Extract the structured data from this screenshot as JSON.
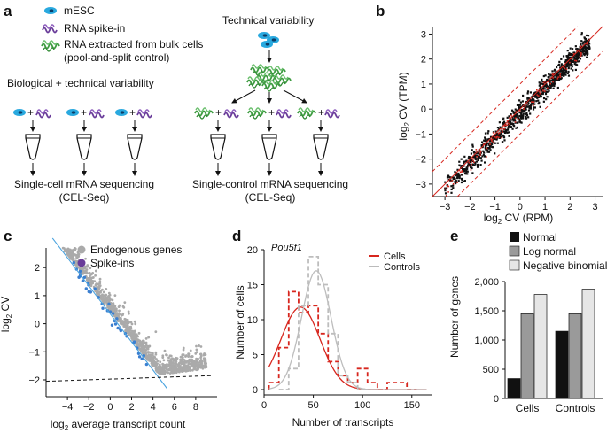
{
  "panels": {
    "a": {
      "label": "a",
      "legend": {
        "mesc": "mESC",
        "spike": "RNA spike-in",
        "bulk_line1": "RNA extracted from bulk cells",
        "bulk_line2": "(pool-and-split control)"
      },
      "bio_title": "Biological + technical variability",
      "tech_title": "Technical variability",
      "single_cell_line1": "Single-cell mRNA sequencing",
      "single_cell_line2": "(CEL-Seq)",
      "single_control_line1": "Single-control mRNA sequencing",
      "single_control_line2": "(CEL-Seq)",
      "plus": "+"
    },
    "b": {
      "label": "b",
      "xlabel_prefix": "log",
      "xlabel_sub": "2",
      "xlabel_suffix": " CV (RPM)",
      "ylabel_prefix": "log",
      "ylabel_sub": "2",
      "ylabel_suffix": " CV (TPM)"
    },
    "c": {
      "label": "c",
      "legend_endogenous": "Endogenous genes",
      "legend_spike": "Spike-ins",
      "xlabel_prefix": "log",
      "xlabel_sub": "2",
      "xlabel_suffix": " average transcript count",
      "ylabel_prefix": "log",
      "ylabel_sub": "2",
      "ylabel_suffix": " CV"
    },
    "d": {
      "label": "d",
      "gene": "Pou5f1",
      "legend_cells": "Cells",
      "legend_controls": "Controls",
      "xlabel": "Number of transcripts",
      "ylabel": "Number of cells"
    },
    "e": {
      "label": "e",
      "legend_normal": "Normal",
      "legend_lognormal": "Log normal",
      "legend_negbin": "Negative binomial",
      "ylabel": "Number of genes"
    }
  },
  "colors": {
    "mesc": "#29a9df",
    "spike": "#6a3d9a",
    "bulk": "#4caf50",
    "red": "#d7261e",
    "blue": "#3b7fd0",
    "grey": "#aaaaaa",
    "lightgrey": "#c8c8c8"
  },
  "chart_data": [
    {
      "id": "b",
      "type": "scatter",
      "title": "",
      "xlabel": "log2 CV (RPM)",
      "ylabel": "log2 CV (TPM)",
      "xlim": [
        -3.5,
        3.3
      ],
      "ylim": [
        -3.5,
        3.3
      ],
      "xticks": [
        -3,
        -2,
        -1,
        0,
        1,
        2,
        3
      ],
      "yticks": [
        -3,
        -2,
        -1,
        0,
        1,
        2,
        3
      ],
      "identity_line": {
        "slope": 1,
        "intercept": 0
      },
      "bounds_lines": [
        {
          "slope": 1,
          "intercept": 1
        },
        {
          "slope": 1,
          "intercept": -1
        }
      ],
      "cloud": {
        "x_range": [
          -3,
          2.8
        ],
        "offset": -0.15,
        "spread": 0.25
      }
    },
    {
      "id": "c",
      "type": "scatter",
      "xlabel": "log2 average transcript count",
      "ylabel": "log2 CV",
      "xlim": [
        -6,
        10
      ],
      "ylim": [
        -2.6,
        2.7
      ],
      "xticks": [
        -4,
        -2,
        0,
        2,
        4,
        6,
        8
      ],
      "yticks": [
        -2,
        -1,
        0,
        1,
        2
      ],
      "poisson_line": {
        "slope": -0.5,
        "intercept": 0.35
      },
      "noise_floor": {
        "from": [
          -6,
          -2.05
        ],
        "to": [
          9.5,
          -1.85
        ]
      },
      "series": [
        {
          "name": "Endogenous genes",
          "x_range": [
            -5,
            9
          ]
        },
        {
          "name": "Spike-ins",
          "x_range": [
            -3.5,
            3.5
          ]
        }
      ]
    },
    {
      "id": "d",
      "type": "line",
      "xlabel": "Number of transcripts",
      "ylabel": "Number of cells",
      "xlim": [
        0,
        170
      ],
      "ylim": [
        0,
        20
      ],
      "xticks": [
        0,
        50,
        100,
        150
      ],
      "yticks": [
        0,
        5,
        10,
        15,
        20
      ],
      "series": [
        {
          "name": "Cells",
          "fit": {
            "mean": 37,
            "sd": 20,
            "peak": 11.8
          },
          "hist": [
            [
              10,
              1
            ],
            [
              20,
              6
            ],
            [
              30,
              14
            ],
            [
              40,
              11
            ],
            [
              50,
              12
            ],
            [
              60,
              8
            ],
            [
              70,
              4
            ],
            [
              80,
              2
            ],
            [
              90,
              1
            ],
            [
              100,
              3
            ],
            [
              110,
              1
            ],
            [
              120,
              0
            ],
            [
              130,
              1
            ],
            [
              140,
              1
            ],
            [
              150,
              0
            ]
          ]
        },
        {
          "name": "Controls",
          "fit": {
            "mean": 53,
            "sd": 15,
            "peak": 17
          },
          "hist": [
            [
              20,
              0
            ],
            [
              30,
              3
            ],
            [
              40,
              12
            ],
            [
              50,
              19
            ],
            [
              60,
              15
            ],
            [
              70,
              8
            ],
            [
              80,
              2
            ],
            [
              90,
              1
            ],
            [
              100,
              0
            ]
          ]
        }
      ]
    },
    {
      "id": "e",
      "type": "bar",
      "ylabel": "Number of genes",
      "categories": [
        "Cells",
        "Controls"
      ],
      "ylim": [
        0,
        2000
      ],
      "yticks": [
        0,
        500,
        1000,
        1500,
        2000
      ],
      "ytick_labels": [
        "0",
        "500",
        "1,000",
        "1,500",
        "2,000"
      ],
      "series": [
        {
          "name": "Normal",
          "values": [
            340,
            1150
          ]
        },
        {
          "name": "Log normal",
          "values": [
            1450,
            1450
          ]
        },
        {
          "name": "Negative binomial",
          "values": [
            1780,
            1870
          ]
        }
      ]
    }
  ]
}
